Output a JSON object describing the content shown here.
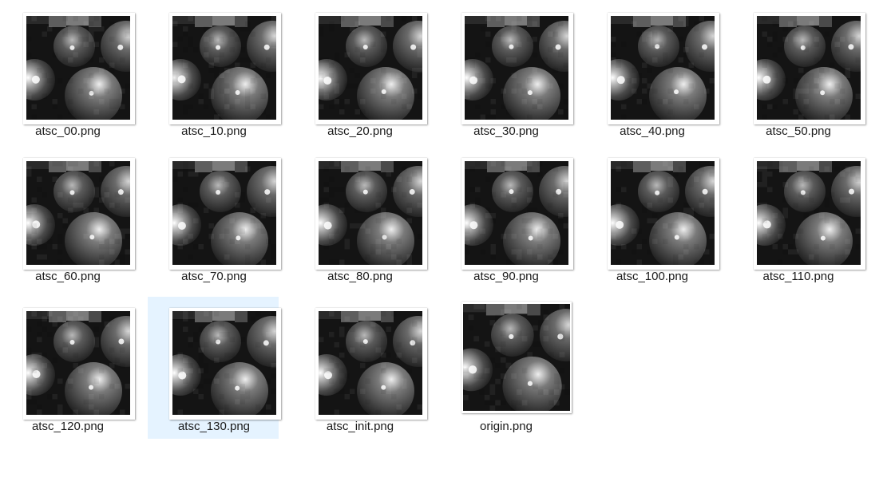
{
  "files": [
    {
      "name": "atsc_00.png",
      "thumbnail": "dark-spheres-thumbnail",
      "selected": false,
      "variant": 0
    },
    {
      "name": "atsc_10.png",
      "thumbnail": "dark-spheres-thumbnail",
      "selected": false,
      "variant": 1
    },
    {
      "name": "atsc_20.png",
      "thumbnail": "dark-spheres-thumbnail",
      "selected": false,
      "variant": 2
    },
    {
      "name": "atsc_30.png",
      "thumbnail": "dark-spheres-thumbnail",
      "selected": false,
      "variant": 3
    },
    {
      "name": "atsc_40.png",
      "thumbnail": "dark-spheres-thumbnail",
      "selected": false,
      "variant": 4
    },
    {
      "name": "atsc_50.png",
      "thumbnail": "dark-spheres-thumbnail",
      "selected": false,
      "variant": 5
    },
    {
      "name": "atsc_60.png",
      "thumbnail": "dark-spheres-thumbnail",
      "selected": false,
      "variant": 6
    },
    {
      "name": "atsc_70.png",
      "thumbnail": "dark-spheres-thumbnail",
      "selected": false,
      "variant": 7
    },
    {
      "name": "atsc_80.png",
      "thumbnail": "dark-spheres-thumbnail",
      "selected": false,
      "variant": 8
    },
    {
      "name": "atsc_90.png",
      "thumbnail": "dark-spheres-thumbnail",
      "selected": false,
      "variant": 9
    },
    {
      "name": "atsc_100.png",
      "thumbnail": "dark-spheres-thumbnail",
      "selected": false,
      "variant": 10
    },
    {
      "name": "atsc_110.png",
      "thumbnail": "dark-spheres-thumbnail",
      "selected": false,
      "variant": 11
    },
    {
      "name": "atsc_120.png",
      "thumbnail": "dark-spheres-thumbnail",
      "selected": false,
      "variant": 12
    },
    {
      "name": "atsc_130.png",
      "thumbnail": "dark-spheres-thumbnail",
      "selected": true,
      "variant": 13
    },
    {
      "name": "atsc_init.png",
      "thumbnail": "dark-spheres-thumbnail",
      "selected": false,
      "variant": 14
    },
    {
      "name": "origin.png",
      "thumbnail": "dark-spheres-thumbnail",
      "selected": false,
      "variant": 15
    }
  ],
  "colors": {
    "selection": "#e5f3ff",
    "label_text": "#1a1a1a",
    "background": "#ffffff"
  }
}
